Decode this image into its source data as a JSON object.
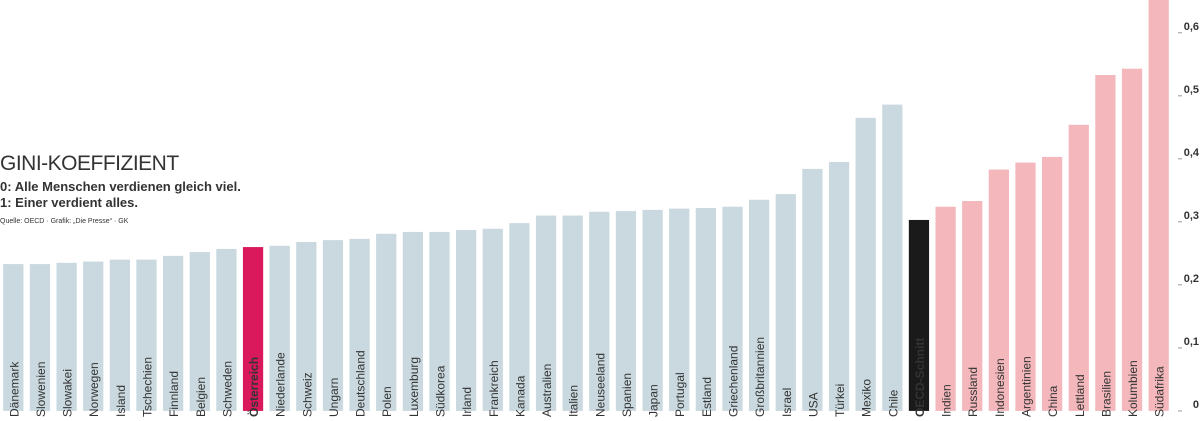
{
  "chart_data": {
    "type": "bar",
    "title": "GINI-KOEFFIZIENT",
    "subtitle": [
      "0: Alle Menschen verdienen gleich viel.",
      "1: Einer verdient alles."
    ],
    "source": "Quelle: OECD · Grafik: „Die Presse“ · GK",
    "categories": [
      "Dänemark",
      "Slowenien",
      "Slowakei",
      "Norwegen",
      "Island",
      "Tschechien",
      "Finnland",
      "Belgien",
      "Schweden",
      "Österreich",
      "Niederlande",
      "Schweiz",
      "Ungarn",
      "Deutschland",
      "Polen",
      "Luxemburg",
      "Südkorea",
      "Irland",
      "Frankreich",
      "Kanada",
      "Australien",
      "Italien",
      "Neuseeland",
      "Spanien",
      "Japan",
      "Portugal",
      "Estland",
      "Griechenland",
      "Großbritannien",
      "Israel",
      "USA",
      "Türkei",
      "Mexiko",
      "Chile",
      "OECD-Schnitt",
      "Indien",
      "Russland",
      "Indonesien",
      "Argentinien",
      "China",
      "Lettland",
      "Brasilien",
      "Kolumbien",
      "Südafrika"
    ],
    "values": [
      0.233,
      0.233,
      0.235,
      0.237,
      0.24,
      0.24,
      0.246,
      0.252,
      0.257,
      0.26,
      0.262,
      0.268,
      0.271,
      0.273,
      0.281,
      0.284,
      0.284,
      0.287,
      0.289,
      0.298,
      0.31,
      0.31,
      0.316,
      0.317,
      0.319,
      0.321,
      0.322,
      0.324,
      0.335,
      0.344,
      0.384,
      0.395,
      0.465,
      0.486,
      0.303,
      0.324,
      0.333,
      0.383,
      0.394,
      0.403,
      0.454,
      0.533,
      0.543,
      0.67
    ],
    "colors": [
      "#c9d9df",
      "#c9d9df",
      "#c9d9df",
      "#c9d9df",
      "#c9d9df",
      "#c9d9df",
      "#c9d9df",
      "#c9d9df",
      "#c9d9df",
      "#d9195c",
      "#c9d9df",
      "#c9d9df",
      "#c9d9df",
      "#c9d9df",
      "#c9d9df",
      "#c9d9df",
      "#c9d9df",
      "#c9d9df",
      "#c9d9df",
      "#c9d9df",
      "#c9d9df",
      "#c9d9df",
      "#c9d9df",
      "#c9d9df",
      "#c9d9df",
      "#c9d9df",
      "#c9d9df",
      "#c9d9df",
      "#c9d9df",
      "#c9d9df",
      "#c9d9df",
      "#c9d9df",
      "#c9d9df",
      "#c9d9df",
      "#1a1a1a",
      "#f4b8bc",
      "#f4b8bc",
      "#f4b8bc",
      "#f4b8bc",
      "#f4b8bc",
      "#f4b8bc",
      "#f4b8bc",
      "#f4b8bc",
      "#f4b8bc"
    ],
    "ylim": [
      -0.016,
      0.652
    ],
    "yticks": [
      0,
      {
        "value": 0.1,
        "label": "0,1"
      },
      {
        "value": 0.2,
        "label": "0,2"
      },
      {
        "value": 0.3,
        "label": "0,3"
      },
      {
        "value": 0.4,
        "label": "0,4"
      },
      {
        "value": 0.5,
        "label": "0,5"
      },
      {
        "value": 0.6,
        "label": "0,6"
      }
    ]
  }
}
